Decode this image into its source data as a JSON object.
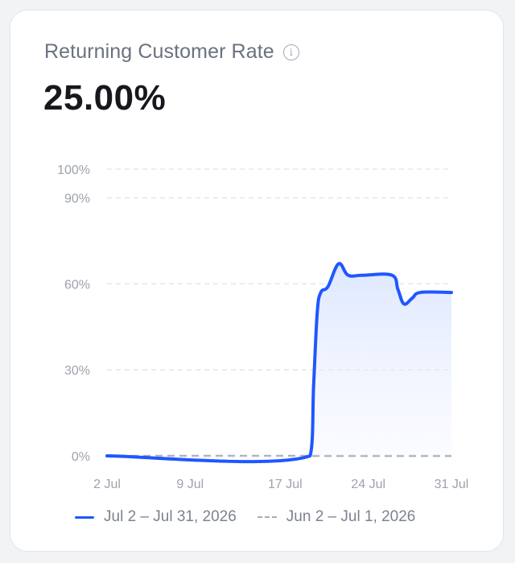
{
  "card": {
    "title": "Returning Customer Rate",
    "info_icon": "info-icon",
    "value": "25.00%"
  },
  "chart_data": {
    "type": "line",
    "title": "",
    "xlabel": "",
    "ylabel": "",
    "y_ticks": [
      {
        "value": 100,
        "label": "100%"
      },
      {
        "value": 90,
        "label": "90%"
      },
      {
        "value": 60,
        "label": "60%"
      },
      {
        "value": 30,
        "label": "30%"
      },
      {
        "value": 0,
        "label": "0%"
      }
    ],
    "x_ticks": [
      {
        "value": 2,
        "label": "2 Jul"
      },
      {
        "value": 9,
        "label": "9 Jul"
      },
      {
        "value": 17,
        "label": "17 Jul"
      },
      {
        "value": 24,
        "label": "24 Jul"
      },
      {
        "value": 31,
        "label": "31 Jul"
      }
    ],
    "xlim": [
      2,
      31
    ],
    "ylim": [
      0,
      100
    ],
    "grid": true,
    "legend_position": "bottom",
    "series": [
      {
        "name": "Jul 2 – Jul 31, 2026",
        "style": "solid-area",
        "color": "#1f57ff",
        "x": [
          2,
          19.1,
          19.4,
          19.7,
          20.0,
          20.6,
          21.5,
          22.3,
          23.5,
          26.0,
          26.5,
          27.0,
          27.7,
          28.4,
          31
        ],
        "y": [
          0,
          0,
          25,
          50,
          57,
          59,
          67,
          63,
          63,
          63,
          58,
          53,
          55,
          57,
          57
        ]
      },
      {
        "name": "Jun 2 – Jul 1, 2026",
        "style": "dashed",
        "color": "#a9adb6",
        "x": [
          2,
          31
        ],
        "y": [
          0,
          0
        ]
      }
    ]
  }
}
